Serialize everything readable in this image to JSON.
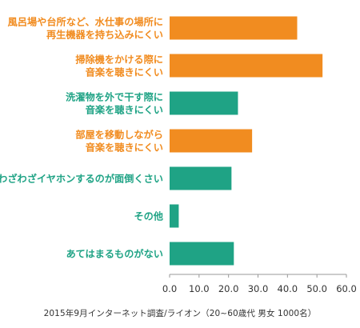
{
  "colors": {
    "orange": "#F18C20",
    "green": "#1FA385",
    "axis": "#999999",
    "text": "#333333"
  },
  "chart_data": {
    "type": "bar",
    "orientation": "horizontal",
    "categories": [
      [
        "風呂場や台所など、水仕事の場所に",
        "再生機器を持ち込みにくい"
      ],
      [
        "掃除機をかける際に",
        "音楽を聴きにくい"
      ],
      [
        "洗濯物を外で干す際に",
        "音楽を聴きにくい"
      ],
      [
        "部屋を移動しながら",
        "音楽を聴きにくい"
      ],
      [
        "わざわざイヤホンするのが面倒くさい"
      ],
      [
        "その他"
      ],
      [
        "あてはまるものがない"
      ]
    ],
    "values": [
      43.3,
      51.9,
      23.2,
      28.0,
      21.0,
      3.1,
      21.8
    ],
    "bar_colors": [
      "orange",
      "orange",
      "green",
      "orange",
      "green",
      "green",
      "green"
    ],
    "xlim": [
      0,
      60
    ],
    "xticks": [
      "0.0",
      "10.0",
      "20.0",
      "30.0",
      "40.0",
      "50.0",
      "60.0"
    ],
    "grid": false
  },
  "source": "2015年9月インターネット調査/ライオン（20~60歳代 男女 1000名）"
}
